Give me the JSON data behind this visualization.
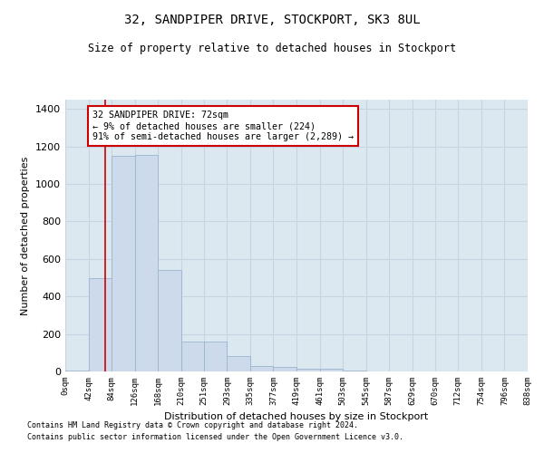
{
  "title1": "32, SANDPIPER DRIVE, STOCKPORT, SK3 8UL",
  "title2": "Size of property relative to detached houses in Stockport",
  "xlabel": "Distribution of detached houses by size in Stockport",
  "ylabel": "Number of detached properties",
  "footer1": "Contains HM Land Registry data © Crown copyright and database right 2024.",
  "footer2": "Contains public sector information licensed under the Open Government Licence v3.0.",
  "bin_edges": [
    0,
    42,
    84,
    126,
    168,
    210,
    251,
    293,
    335,
    377,
    419,
    461,
    503,
    545,
    587,
    629,
    670,
    712,
    754,
    796,
    838
  ],
  "bar_heights": [
    5,
    500,
    1150,
    1155,
    540,
    160,
    160,
    80,
    30,
    25,
    15,
    15,
    5,
    2,
    1,
    1,
    1,
    1,
    0,
    0
  ],
  "bar_color": "#ccdaeb",
  "bar_edge_color": "#9ab5d0",
  "grid_color": "#c8d4e0",
  "background_color": "#dce8f0",
  "red_line_x": 72,
  "annotation_text": "32 SANDPIPER DRIVE: 72sqm\n← 9% of detached houses are smaller (224)\n91% of semi-detached houses are larger (2,289) →",
  "annotation_box_color": "#ffffff",
  "annotation_border_color": "#cc0000",
  "ylim": [
    0,
    1450
  ],
  "yticks": [
    0,
    200,
    400,
    600,
    800,
    1000,
    1200,
    1400
  ],
  "tick_labels": [
    "0sqm",
    "42sqm",
    "84sqm",
    "126sqm",
    "168sqm",
    "210sqm",
    "251sqm",
    "293sqm",
    "335sqm",
    "377sqm",
    "419sqm",
    "461sqm",
    "503sqm",
    "545sqm",
    "587sqm",
    "629sqm",
    "670sqm",
    "712sqm",
    "754sqm",
    "796sqm",
    "838sqm"
  ]
}
